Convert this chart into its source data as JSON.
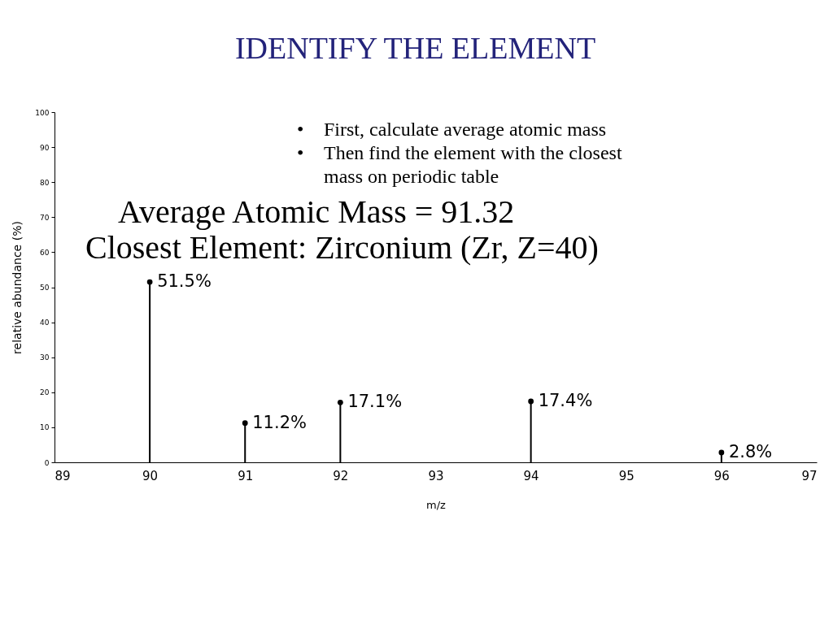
{
  "chart_data": {
    "type": "lollipop",
    "title": "IDENTIFY THE ELEMENT",
    "xlabel": "m/z",
    "ylabel": "relative abundance (%)",
    "x": [
      90,
      91,
      92,
      94,
      96
    ],
    "values": [
      51.5,
      11.2,
      17.1,
      17.4,
      2.8
    ],
    "value_labels": [
      "51.5%",
      "11.2%",
      "17.1%",
      "17.4%",
      "2.8%"
    ],
    "color": "#000000",
    "marker": "circle",
    "grid": false,
    "xlim": [
      89,
      97
    ],
    "xticks": [
      89,
      90,
      91,
      92,
      93,
      94,
      95,
      96,
      97
    ],
    "ylim": [
      0,
      100
    ],
    "yticks": [
      0,
      10,
      20,
      30,
      40,
      50,
      60,
      70,
      80,
      90,
      100
    ],
    "annotations": [
      "• First, calculate average atomic mass",
      "• Then find the element with the closest mass on periodic table",
      "Average Atomic Mass = 91.32",
      "Closest Element: Zirconium (Zr, Z=40)"
    ]
  }
}
